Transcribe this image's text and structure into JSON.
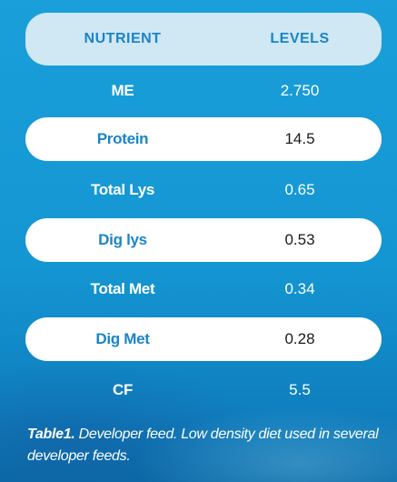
{
  "table": {
    "headers": {
      "nutrient": "NUTRIENT",
      "levels": "LEVELS"
    },
    "rows": [
      {
        "nutrient": "ME",
        "level": "2.750"
      },
      {
        "nutrient": "Protein",
        "level": "14.5"
      },
      {
        "nutrient": "Total Lys",
        "level": "0.65"
      },
      {
        "nutrient": "Dig lys",
        "level": "0.53"
      },
      {
        "nutrient": "Total Met",
        "level": "0.34"
      },
      {
        "nutrient": "Dig Met",
        "level": "0.28"
      },
      {
        "nutrient": "CF",
        "level": "5.5"
      }
    ]
  },
  "caption": {
    "label": "Table1.",
    "text": " Developer feed. Low density diet used in several developer feeds."
  },
  "colors": {
    "header_bg": "#cfe8f4",
    "accent_text": "#1b84c7",
    "background": "#1a9fda",
    "row_white": "#ffffff"
  }
}
